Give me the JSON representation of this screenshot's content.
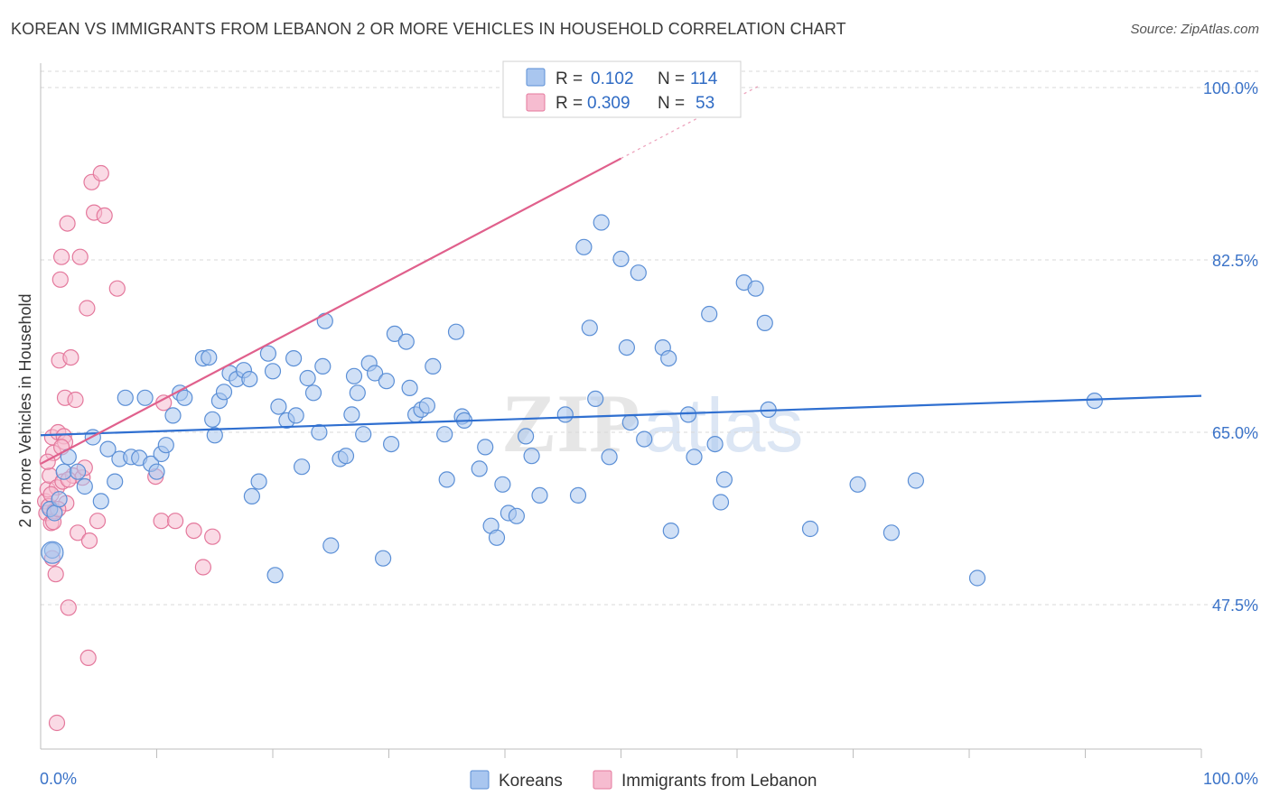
{
  "title": "KOREAN VS IMMIGRANTS FROM LEBANON 2 OR MORE VEHICLES IN HOUSEHOLD CORRELATION CHART",
  "source": "Source: ZipAtlas.com",
  "watermark": {
    "zip": "ZIP",
    "atlas": "atlas"
  },
  "colors": {
    "korean_fill": "#a9c6ef",
    "korean_stroke": "#5b8fd6",
    "korean_line": "#2f6fd0",
    "lebanon_fill": "#f6bcd0",
    "lebanon_stroke": "#e4789c",
    "lebanon_line": "#e0608c",
    "tick_label": "#3b73c8",
    "grid": "#d8d8d8"
  },
  "legend": {
    "rows": [
      {
        "r_label": "R =",
        "r_value": "0.102",
        "n_label": "N =",
        "n_value": "114"
      },
      {
        "r_label": "R =",
        "r_value": "0.309",
        "n_label": "N =",
        "n_value": "53"
      }
    ]
  },
  "chart_data": {
    "type": "scatter",
    "ylabel": "2 or more Vehicles in Household",
    "xlim": [
      0,
      100
    ],
    "ylim": [
      30,
      102
    ],
    "x_tick_labels": [
      "0.0%",
      "100.0%"
    ],
    "y_ticks": [
      {
        "value": 47.5,
        "label": "47.5%"
      },
      {
        "value": 65.0,
        "label": "65.0%"
      },
      {
        "value": 82.5,
        "label": "82.5%"
      },
      {
        "value": 100.0,
        "label": "100.0%"
      }
    ],
    "grid": "horizontal dashed",
    "legend_position": "top-center",
    "series": [
      {
        "name": "Koreans",
        "trend": {
          "x": [
            0,
            100
          ],
          "y": [
            64.7,
            68.7
          ]
        },
        "points": [
          [
            0.8,
            57.2
          ],
          [
            1.0,
            53.0
          ],
          [
            1.2,
            56.8
          ],
          [
            1.6,
            58.2
          ],
          [
            2.0,
            61.0
          ],
          [
            2.4,
            62.5
          ],
          [
            3.2,
            61.0
          ],
          [
            3.8,
            59.5
          ],
          [
            4.5,
            64.5
          ],
          [
            5.2,
            58.0
          ],
          [
            5.8,
            63.3
          ],
          [
            6.4,
            60.0
          ],
          [
            6.8,
            62.3
          ],
          [
            7.3,
            68.5
          ],
          [
            7.8,
            62.5
          ],
          [
            8.5,
            62.4
          ],
          [
            9.0,
            68.5
          ],
          [
            9.5,
            61.8
          ],
          [
            10.0,
            61.0
          ],
          [
            10.4,
            62.8
          ],
          [
            10.8,
            63.7
          ],
          [
            11.4,
            66.7
          ],
          [
            12.0,
            69.0
          ],
          [
            12.4,
            68.5
          ],
          [
            14.0,
            72.5
          ],
          [
            14.5,
            72.6
          ],
          [
            14.8,
            66.3
          ],
          [
            15.0,
            64.7
          ],
          [
            15.4,
            68.2
          ],
          [
            15.8,
            69.1
          ],
          [
            16.3,
            71.0
          ],
          [
            16.9,
            70.4
          ],
          [
            17.5,
            71.3
          ],
          [
            18.0,
            70.4
          ],
          [
            18.2,
            58.5
          ],
          [
            18.8,
            60.0
          ],
          [
            19.6,
            73.0
          ],
          [
            20.0,
            71.2
          ],
          [
            20.2,
            50.5
          ],
          [
            20.5,
            67.6
          ],
          [
            21.2,
            66.2
          ],
          [
            21.8,
            72.5
          ],
          [
            22.0,
            66.7
          ],
          [
            22.5,
            61.5
          ],
          [
            23.0,
            70.5
          ],
          [
            23.5,
            69.0
          ],
          [
            24.0,
            65.0
          ],
          [
            24.3,
            71.7
          ],
          [
            24.5,
            76.3
          ],
          [
            25.0,
            53.5
          ],
          [
            25.8,
            62.3
          ],
          [
            26.3,
            62.6
          ],
          [
            26.8,
            66.8
          ],
          [
            27.0,
            70.7
          ],
          [
            27.3,
            69.0
          ],
          [
            27.8,
            64.8
          ],
          [
            28.3,
            72.0
          ],
          [
            28.8,
            71.0
          ],
          [
            29.5,
            52.2
          ],
          [
            29.8,
            70.2
          ],
          [
            30.2,
            63.8
          ],
          [
            30.5,
            75.0
          ],
          [
            31.5,
            74.2
          ],
          [
            31.8,
            69.5
          ],
          [
            32.3,
            66.8
          ],
          [
            32.8,
            67.3
          ],
          [
            33.3,
            67.7
          ],
          [
            33.8,
            71.7
          ],
          [
            34.8,
            64.8
          ],
          [
            35.0,
            60.2
          ],
          [
            35.8,
            75.2
          ],
          [
            36.3,
            66.6
          ],
          [
            36.5,
            66.2
          ],
          [
            37.8,
            61.3
          ],
          [
            38.3,
            63.5
          ],
          [
            38.8,
            55.5
          ],
          [
            39.3,
            54.3
          ],
          [
            39.8,
            59.7
          ],
          [
            40.3,
            56.8
          ],
          [
            41.0,
            56.5
          ],
          [
            41.8,
            64.6
          ],
          [
            42.3,
            62.6
          ],
          [
            43.0,
            58.6
          ],
          [
            45.2,
            66.8
          ],
          [
            46.3,
            58.6
          ],
          [
            46.8,
            83.8
          ],
          [
            47.3,
            75.6
          ],
          [
            47.8,
            68.4
          ],
          [
            48.3,
            86.3
          ],
          [
            49.0,
            62.5
          ],
          [
            50.0,
            82.6
          ],
          [
            50.5,
            73.6
          ],
          [
            50.8,
            66.0
          ],
          [
            51.5,
            81.2
          ],
          [
            52.0,
            64.3
          ],
          [
            53.6,
            73.6
          ],
          [
            54.1,
            72.5
          ],
          [
            54.3,
            55.0
          ],
          [
            55.8,
            66.8
          ],
          [
            56.3,
            62.5
          ],
          [
            57.6,
            77.0
          ],
          [
            58.1,
            63.8
          ],
          [
            58.6,
            57.9
          ],
          [
            58.9,
            60.2
          ],
          [
            60.6,
            80.2
          ],
          [
            61.6,
            79.6
          ],
          [
            62.4,
            76.1
          ],
          [
            62.7,
            67.3
          ],
          [
            66.3,
            55.2
          ],
          [
            70.4,
            59.7
          ],
          [
            73.3,
            54.8
          ],
          [
            75.4,
            60.1
          ],
          [
            80.7,
            50.2
          ],
          [
            90.8,
            68.2
          ]
        ]
      },
      {
        "name": "Immigrants from Lebanon",
        "trend": {
          "x": [
            0,
            50
          ],
          "y": [
            61.8,
            92.8
          ]
        },
        "points": [
          [
            0.4,
            58.0
          ],
          [
            0.5,
            56.8
          ],
          [
            0.6,
            59.2
          ],
          [
            0.7,
            57.5
          ],
          [
            0.8,
            60.6
          ],
          [
            0.9,
            55.8
          ],
          [
            1.0,
            64.5
          ],
          [
            1.0,
            52.2
          ],
          [
            1.1,
            62.9
          ],
          [
            1.2,
            57.0
          ],
          [
            1.3,
            50.6
          ],
          [
            1.4,
            59.4
          ],
          [
            1.4,
            35.5
          ],
          [
            1.5,
            65.0
          ],
          [
            1.6,
            72.3
          ],
          [
            1.7,
            80.5
          ],
          [
            1.8,
            82.8
          ],
          [
            1.9,
            60.0
          ],
          [
            2.0,
            64.6
          ],
          [
            2.1,
            68.5
          ],
          [
            2.2,
            57.8
          ],
          [
            2.3,
            86.2
          ],
          [
            2.4,
            47.2
          ],
          [
            2.6,
            72.6
          ],
          [
            2.8,
            60.6
          ],
          [
            3.0,
            68.3
          ],
          [
            3.2,
            54.8
          ],
          [
            3.4,
            82.8
          ],
          [
            3.6,
            60.4
          ],
          [
            3.8,
            61.4
          ],
          [
            4.0,
            77.6
          ],
          [
            4.1,
            42.1
          ],
          [
            4.2,
            54.0
          ],
          [
            4.4,
            90.4
          ],
          [
            4.6,
            87.3
          ],
          [
            4.9,
            56.0
          ],
          [
            5.2,
            91.3
          ],
          [
            5.5,
            87.0
          ],
          [
            6.6,
            79.6
          ],
          [
            9.9,
            60.5
          ],
          [
            10.4,
            56.0
          ],
          [
            10.6,
            68.0
          ],
          [
            11.6,
            56.0
          ],
          [
            13.2,
            55.0
          ],
          [
            14.0,
            51.3
          ],
          [
            14.8,
            54.4
          ],
          [
            1.1,
            55.9
          ],
          [
            1.5,
            57.2
          ],
          [
            0.9,
            58.7
          ],
          [
            2.1,
            64.0
          ],
          [
            0.6,
            62.0
          ],
          [
            1.8,
            63.5
          ],
          [
            2.4,
            60.2
          ]
        ]
      }
    ]
  },
  "bottom_legend": [
    "Koreans",
    "Immigrants from Lebanon"
  ]
}
